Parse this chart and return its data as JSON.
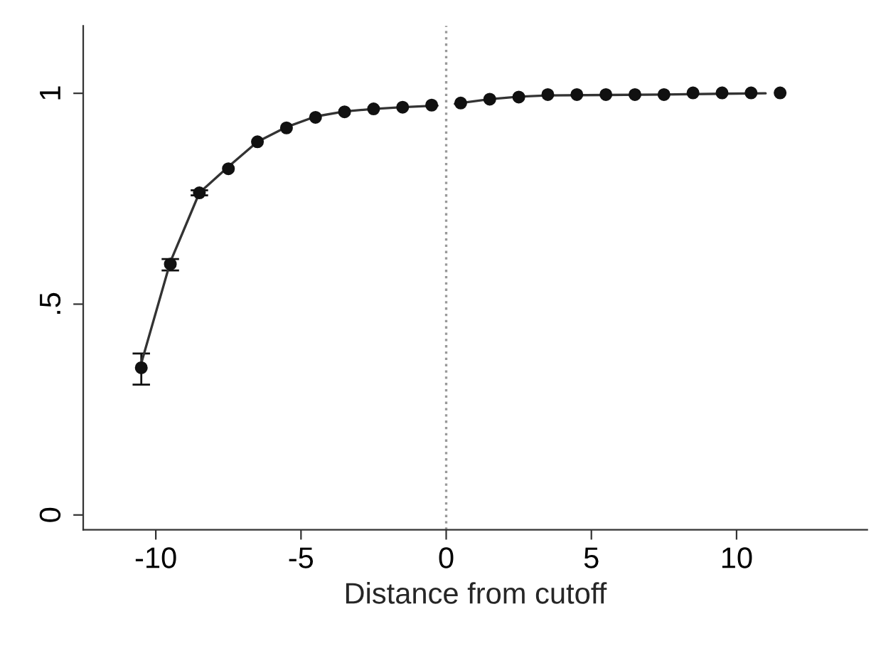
{
  "chart_data": {
    "type": "scatter",
    "xlabel": "Distance from cutoff",
    "xlim": [
      -12.5,
      14.5
    ],
    "xticks": [
      -10,
      -5,
      0,
      5,
      10
    ],
    "ylim": [
      -0.035,
      1.16
    ],
    "yticks": [
      {
        "value": 0,
        "label": "0"
      },
      {
        "value": 0.5,
        "label": ".5"
      },
      {
        "value": 1,
        "label": "1"
      }
    ],
    "grid": false,
    "legend": false,
    "ref_lines": [
      {
        "axis": "x",
        "value": 0,
        "color": "#999999",
        "line_style": "dotted"
      }
    ],
    "series": [
      {
        "marker": "circle",
        "color": "#111111",
        "x": [
          -10.5,
          -9.5,
          -8.5,
          -7.5,
          -6.5,
          -5.5,
          -4.5,
          -3.5,
          -2.5,
          -1.5,
          -0.5,
          0.5,
          1.5,
          2.5,
          3.5,
          4.5,
          5.5,
          6.5,
          7.5,
          8.5,
          9.5,
          10.5,
          11.5
        ],
        "values": [
          0.349,
          0.595,
          0.764,
          0.821,
          0.885,
          0.918,
          0.943,
          0.956,
          0.963,
          0.967,
          0.972,
          0.977,
          0.986,
          0.991,
          0.997,
          0.997,
          0.997,
          0.997,
          0.997,
          1.001,
          1.001,
          1.001,
          1.001
        ],
        "errors": [
          [
            0.309,
            0.383
          ],
          [
            0.58,
            0.607
          ],
          [
            0.758,
            0.77
          ],
          null,
          null,
          null,
          null,
          null,
          null,
          null,
          null,
          null,
          null,
          null,
          null,
          null,
          null,
          null,
          null,
          null,
          null,
          null,
          null
        ]
      },
      {
        "type": "line",
        "marker": "none",
        "color": "#333333",
        "x": [
          -10.5,
          -9.5,
          -8.5,
          -7.5,
          -6.5,
          -5.5,
          -4.5,
          -3.5,
          -2.5,
          -1.5,
          -0.3
        ],
        "values": [
          0.36,
          0.6,
          0.764,
          0.826,
          0.885,
          0.92,
          0.945,
          0.957,
          0.963,
          0.967,
          0.971
        ]
      },
      {
        "type": "line",
        "marker": "none",
        "color": "#333333",
        "x": [
          0.3,
          1.5,
          2.5,
          3.5,
          5.5,
          7.5,
          9.5,
          11.0
        ],
        "values": [
          0.975,
          0.986,
          0.992,
          0.995,
          0.996,
          0.997,
          0.999,
          1.0
        ]
      }
    ]
  }
}
